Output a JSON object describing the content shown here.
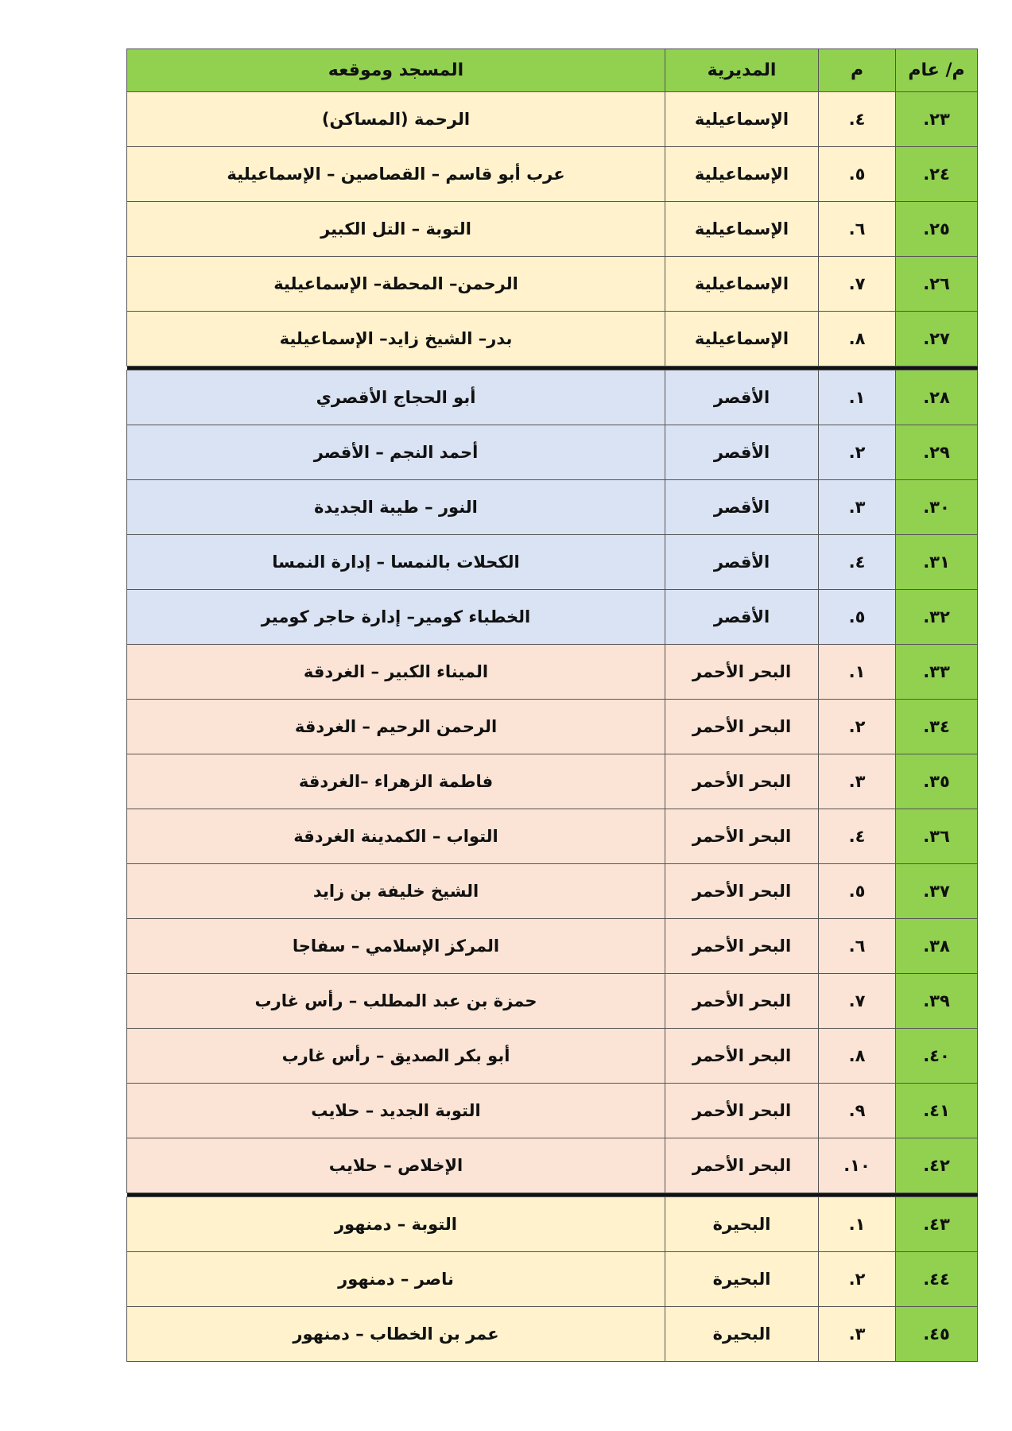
{
  "header": {
    "general_no": "م/ عام",
    "no": "م",
    "directorate": "المديرية",
    "mosque": "المسجد وموقعه"
  },
  "colors": {
    "header": "#92d050",
    "ismailia": "#fff2cc",
    "luxor": "#dae3f3",
    "red_sea": "#fbe4d5",
    "beheira": "#fff2cc"
  },
  "groups": [
    {
      "cls": "ismailia",
      "rows": [
        [
          "٢٣.",
          "٤.",
          "الإسماعيلية",
          "الرحمة (المساكن)"
        ],
        [
          "٢٤.",
          "٥.",
          "الإسماعيلية",
          "عرب أبو قاسم – القصاصين – الإسماعيلية"
        ],
        [
          "٢٥.",
          "٦.",
          "الإسماعيلية",
          "التوبة – التل الكبير"
        ],
        [
          "٢٦.",
          "٧.",
          "الإسماعيلية",
          "الرحمن– المحطة– الإسماعيلية"
        ],
        [
          "٢٧.",
          "٨.",
          "الإسماعيلية",
          "بدر– الشيخ زايد– الإسماعيلية"
        ]
      ]
    },
    {
      "cls": "luxor",
      "rows": [
        [
          "٢٨.",
          "١.",
          "الأقصر",
          "أبو الحجاج الأقصري"
        ],
        [
          "٢٩.",
          "٢.",
          "الأقصر",
          "أحمد النجم – الأقصر"
        ],
        [
          "٣٠.",
          "٣.",
          "الأقصر",
          "النور – طيبة الجديدة"
        ],
        [
          "٣١.",
          "٤.",
          "الأقصر",
          "الكحلات بالنمسا – إدارة النمسا"
        ],
        [
          "٣٢.",
          "٥.",
          "الأقصر",
          "الخطباء كومير– إدارة حاجر كومير"
        ]
      ]
    },
    {
      "cls": "red",
      "rows": [
        [
          "٣٣.",
          "١.",
          "البحر الأحمر",
          "الميناء الكبير – الغردقة"
        ],
        [
          "٣٤.",
          "٢.",
          "البحر الأحمر",
          "الرحمن الرحيم  – الغردقة"
        ],
        [
          "٣٥.",
          "٣.",
          "البحر الأحمر",
          "فاطمة الزهراء  –الغردقة"
        ],
        [
          "٣٦.",
          "٤.",
          "البحر الأحمر",
          "التواب  – الكمدينة الغردقة"
        ],
        [
          "٣٧.",
          "٥.",
          "البحر الأحمر",
          "الشيخ خليفة بن زايد"
        ],
        [
          "٣٨.",
          "٦.",
          "البحر الأحمر",
          "المركز الإسلامي – سفاجا"
        ],
        [
          "٣٩.",
          "٧.",
          "البحر الأحمر",
          "حمزة بن عبد المطلب  – رأس غارب"
        ],
        [
          "٤٠.",
          "٨.",
          "البحر الأحمر",
          "أبو بكر الصديق – رأس غارب"
        ],
        [
          "٤١.",
          "٩.",
          "البحر الأحمر",
          "التوبة الجديد – حلايب"
        ],
        [
          "٤٢.",
          "١٠.",
          "البحر الأحمر",
          "الإخلاص – حلايب"
        ]
      ]
    },
    {
      "cls": "beheira",
      "rows": [
        [
          "٤٣.",
          "١.",
          "البحيرة",
          "التوبة – دمنهور"
        ],
        [
          "٤٤.",
          "٢.",
          "البحيرة",
          "ناصر  – دمنهور"
        ],
        [
          "٤٥.",
          "٣.",
          "البحيرة",
          "عمر بن الخطاب – دمنهور"
        ]
      ]
    }
  ]
}
